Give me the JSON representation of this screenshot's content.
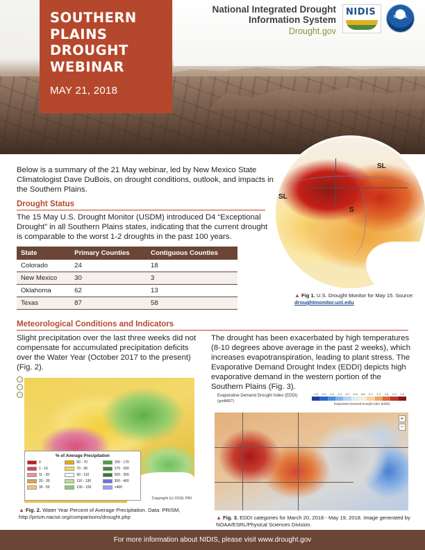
{
  "header": {
    "title_line1": "SOUTHERN",
    "title_line2": "PLAINS",
    "title_line3": "DROUGHT",
    "title_line4": "WEBINAR",
    "date": "MAY 21, 2018"
  },
  "branding": {
    "org_line1": "National Integrated Drought",
    "org_line2": "Information System",
    "url": "Drought.gov",
    "nidis_logo_text": "NIDIS",
    "noaa_logo_text": "NOAA"
  },
  "intro": "Below is a summary of the 21 May webinar, led by New Mexico State Climatologist Dave DuBois, on drought conditions, outlook, and impacts in the Southern Plains.",
  "drought_status": {
    "heading": "Drought Status",
    "text": "The 15 May U.S. Drought Monitor (USDM) introduced D4 “Exceptional Drought” in all Southern Plains states, indicating that the current drought is comparable to the worst 1-2 droughts in the past 100 years.",
    "table": {
      "headers": [
        "State",
        "Primary Counties",
        "Contiguous Counties"
      ],
      "rows": [
        [
          "Colorado",
          "24",
          "18"
        ],
        [
          "New Mexico",
          "30",
          "3"
        ],
        [
          "Oklahoma",
          "62",
          "13"
        ],
        [
          "Texas",
          "87",
          "58"
        ]
      ]
    }
  },
  "fig1": {
    "map_labels": [
      "SL",
      "SL",
      "S"
    ],
    "caption_bold": "Fig 1.",
    "caption": " U.S. Drought Monitor for May 15. Source: ",
    "source": "droughtmonitor.unl.edu"
  },
  "meteorological": {
    "heading": "Meteorological Conditions and Indicators",
    "left_text": "Slight precipitation over the last three weeks did not compensate for accumulated precipitation deficits over the Water Year (October 2017 to the present) (Fig. 2).",
    "right_text": "The drought has been exacerbated by high temperatures (8-10 degrees above average in the past 2 weeks), which increases evapotranspiration, leading to plant stress. The Evaporative Demand Drought Index (EDDI) depicts high evaporative demand in the western portion of the Southern Plains (Fig. 3)."
  },
  "fig2": {
    "legend_title": "% of Average Precipitation",
    "legend_items": [
      {
        "label": "0",
        "color": "#c41a1a"
      },
      {
        "label": "50 - 70",
        "color": "#f0a800"
      },
      {
        "label": "150 - 170",
        "color": "#4f9e40"
      },
      {
        "label": "1 - 10",
        "color": "#e0425a"
      },
      {
        "label": "70 - 90",
        "color": "#f7d84c"
      },
      {
        "label": "170 - 200",
        "color": "#3a8a35"
      },
      {
        "label": "11 - 20",
        "color": "#e890a8"
      },
      {
        "label": "90 - 110",
        "color": "#ffffff"
      },
      {
        "label": "200 - 300",
        "color": "#2f7d32"
      },
      {
        "label": "20 - 30",
        "color": "#e8a040"
      },
      {
        "label": "110 - 130",
        "color": "#b4e08a"
      },
      {
        "label": "300 - 400",
        "color": "#6d6df0"
      },
      {
        "label": "30 - 50",
        "color": "#f3c27a"
      },
      {
        "label": "130 - 150",
        "color": "#86cc70"
      },
      {
        "label": ">400",
        "color": "#9d9dff"
      }
    ],
    "copyright": "Copyright (c) 2018, PRI",
    "caption_bold": "Fig. 2.",
    "caption": " Water Year Percent of Average Precipitation.  Data: PRISM, http://prism.nacse.org/comparisons/drought.php"
  },
  "fig3": {
    "map_title": "Evaporative Demand Drought Index (EDDI)",
    "map_subtitle": "(gridMET)",
    "scale_ticks": [
      "-2.5",
      "-2.0",
      "-1.5",
      "-1.2",
      "-0.7",
      "-0.5",
      "0.5",
      "0.7",
      "1.2",
      "1.5",
      "2.0",
      "2.5"
    ],
    "scale_colors": [
      "#1f3f9c",
      "#2b66c8",
      "#4f8fdc",
      "#86b4ea",
      "#bcd4f3",
      "#e0e9f7",
      "#f7ecd9",
      "#f5d2a1",
      "#eba66a",
      "#dc6b3a",
      "#bf3526",
      "#8c1717"
    ],
    "scale_caption": "Evaporative Demand Drought Index (EDDI)",
    "caption_bold": "Fig. 3.",
    "caption": " EDDI categories for March 20, 2018 - May 19, 2018. Image generated by NOAA/ESRL/Physical Sciences Division."
  },
  "footer": "For more information about NIDIS, please visit www.drought.gov"
}
